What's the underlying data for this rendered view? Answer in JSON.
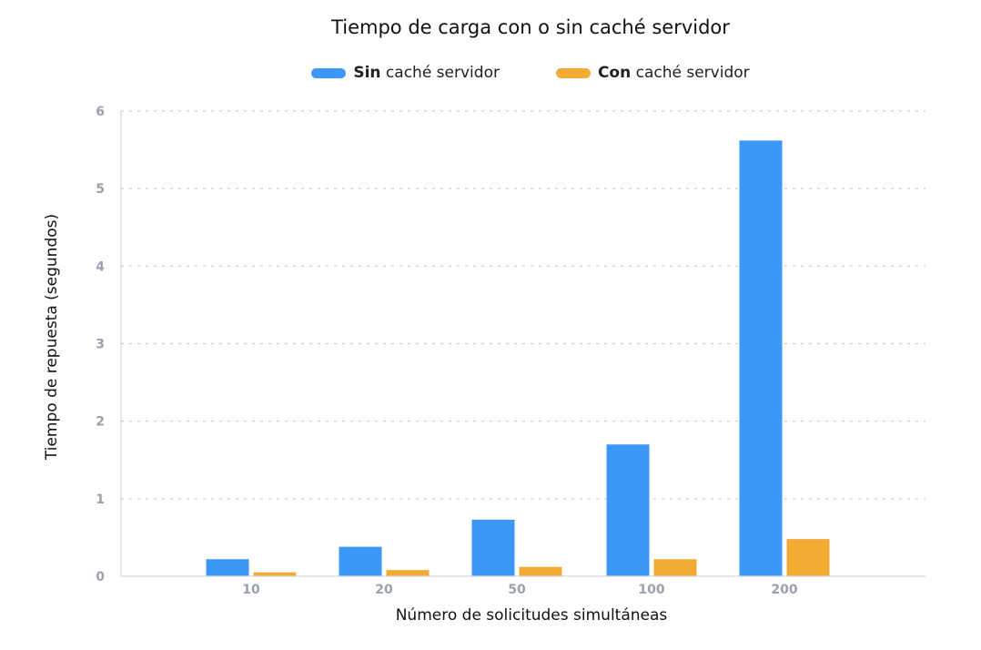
{
  "chart_data": {
    "type": "bar",
    "title": "Tiempo de carga con o sin caché servidor",
    "xlabel": "Número de solicitudes simultáneas",
    "ylabel": "Tiempo de repuesta (segundos)",
    "categories": [
      "10",
      "20",
      "50",
      "100",
      "200"
    ],
    "ylim": [
      0,
      6
    ],
    "yticks": [
      "0",
      "1",
      "2",
      "3",
      "4",
      "5",
      "6"
    ],
    "grid": true,
    "legend_position": "top",
    "series": [
      {
        "name": "Sin caché servidor",
        "name_bold": "Sin",
        "name_rest": " caché servidor",
        "color": "#3d97f7",
        "values": [
          0.22,
          0.38,
          0.73,
          1.7,
          5.62
        ]
      },
      {
        "name": "Con caché servidor",
        "name_bold": "Con",
        "name_rest": " caché servidor",
        "color": "#f2ab35",
        "values": [
          0.05,
          0.08,
          0.12,
          0.22,
          0.48
        ]
      }
    ]
  }
}
